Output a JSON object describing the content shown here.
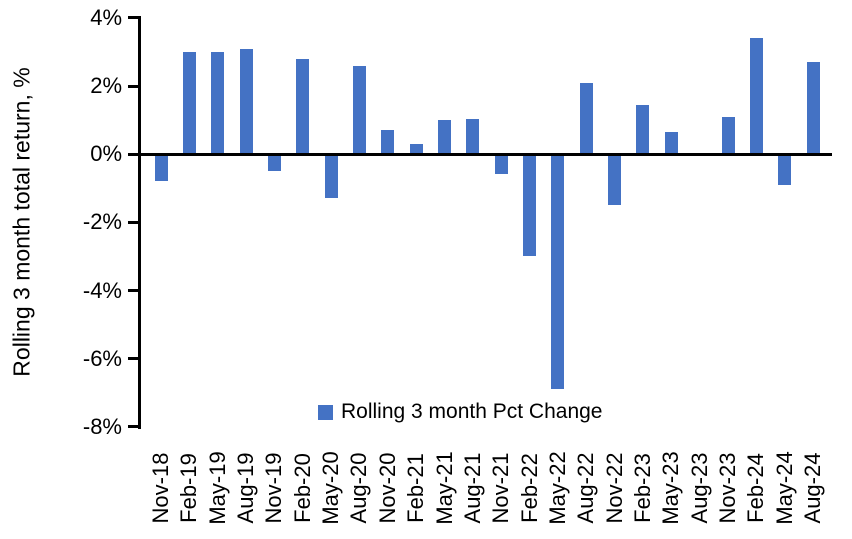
{
  "chart_data": {
    "type": "bar",
    "title": "",
    "xlabel": "",
    "ylabel": "Rolling 3 month total return, %",
    "categories": [
      "Nov-18",
      "Feb-19",
      "May-19",
      "Aug-19",
      "Nov-19",
      "Feb-20",
      "May-20",
      "Aug-20",
      "Nov-20",
      "Feb-21",
      "May-21",
      "Aug-21",
      "Nov-21",
      "Feb-22",
      "May-22",
      "Aug-22",
      "Nov-22",
      "Feb-23",
      "May-23",
      "Aug-23",
      "Nov-23",
      "Feb-24",
      "May-24",
      "Aug-24"
    ],
    "series": [
      {
        "name": "Rolling 3 month Pct Change",
        "values": [
          -0.8,
          3.0,
          3.0,
          3.1,
          -0.5,
          2.8,
          -1.3,
          2.6,
          0.7,
          0.3,
          1.0,
          1.05,
          -0.6,
          -3.0,
          -6.9,
          2.1,
          -1.5,
          1.45,
          0.65,
          0.0,
          1.1,
          3.4,
          -0.9,
          2.7
        ]
      }
    ],
    "legend": {
      "label": "Rolling 3 month Pct Change",
      "position": "bottom-center"
    },
    "ylim": [
      -8,
      4
    ],
    "yticks": [
      {
        "value": 4,
        "label": "4%"
      },
      {
        "value": 2,
        "label": "2%"
      },
      {
        "value": 0,
        "label": "0%"
      },
      {
        "value": -2,
        "label": "-2%"
      },
      {
        "value": -4,
        "label": "-4%"
      },
      {
        "value": -6,
        "label": "-6%"
      },
      {
        "value": -8,
        "label": "-8%"
      }
    ],
    "grid": false,
    "bar_color": "#4472C4",
    "axis_color": "#000000"
  }
}
